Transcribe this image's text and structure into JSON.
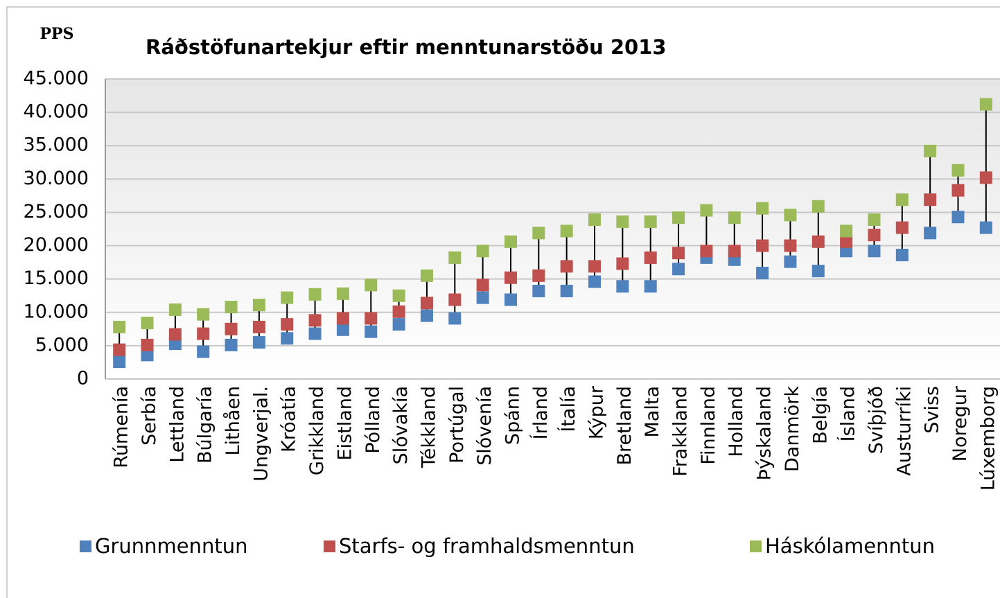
{
  "chart_data": {
    "type": "dot",
    "title": "Ráðstöfunartekjur eftir menntunarstöðu 2013",
    "ylabel": "PPS",
    "categories": [
      "Rúmenía",
      "Serbía",
      "Lettland",
      "Búlgaría",
      "Lithåen",
      "Ungverjal.",
      "Króatía",
      "Grikkland",
      "Eistland",
      "Pólland",
      "Slóvakía",
      "Tékkland",
      "Portúgal",
      "Slóvenía",
      "Spánn",
      "Írland",
      "Ítalía",
      "Kýpur",
      "Bretland",
      "Malta",
      "Frakkland",
      "Finnland",
      "Holland",
      "Þýskaland",
      "Danmörk",
      "Belgía",
      "Ísland",
      "Svíþjóð",
      "Austurríki",
      "Sviss",
      "Noregur",
      "Lúxemborg"
    ],
    "series": [
      {
        "name": "Grunnmenntun",
        "color": "#4f81bd",
        "values": [
          2600,
          3600,
          5300,
          4100,
          5100,
          5500,
          6100,
          6800,
          7400,
          7100,
          8200,
          9500,
          9100,
          12200,
          11900,
          13200,
          13200,
          14600,
          13900,
          13900,
          16500,
          18200,
          17900,
          15900,
          17600,
          16200,
          19200,
          19200,
          18600,
          21900,
          24300,
          22700
        ]
      },
      {
        "name": "Starfs- og framhaldsmenntun",
        "color": "#c0504d",
        "values": [
          4400,
          5100,
          6700,
          6800,
          7500,
          7800,
          8200,
          8800,
          9100,
          9100,
          10100,
          11400,
          11900,
          14100,
          15200,
          15500,
          16900,
          16900,
          17300,
          18200,
          18900,
          19200,
          19200,
          20000,
          20000,
          20600,
          20600,
          21600,
          22700,
          26900,
          28300,
          30200
        ]
      },
      {
        "name": "Háskólamenntun",
        "color": "#9bbb59",
        "values": [
          7800,
          8400,
          10400,
          9700,
          10800,
          11100,
          12200,
          12700,
          12800,
          14100,
          12500,
          15500,
          18200,
          19200,
          20600,
          21900,
          22200,
          23900,
          23600,
          23600,
          24200,
          25300,
          24200,
          25600,
          24600,
          25900,
          22200,
          23900,
          26900,
          34200,
          31300,
          41200
        ]
      }
    ],
    "ylim": [
      0,
      45000
    ],
    "yticks": [
      0,
      {
        "value": 5000,
        "label": "5.000"
      },
      {
        "value": 10000,
        "label": "10.000"
      },
      {
        "value": 15000,
        "label": "15.000"
      },
      {
        "value": 20000,
        "label": "20.000"
      },
      {
        "value": 25000,
        "label": "25.000"
      },
      {
        "value": 30000,
        "label": "30.000"
      },
      {
        "value": 35000,
        "label": "35.000"
      },
      {
        "value": 40000,
        "label": "40.000"
      },
      {
        "value": 45000,
        "label": "45.000"
      }
    ],
    "grid": true
  }
}
